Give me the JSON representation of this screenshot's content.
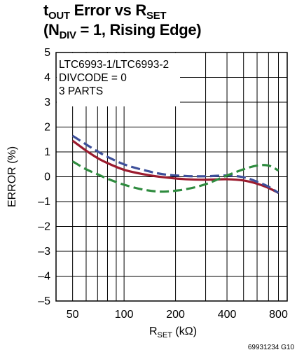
{
  "title": {
    "line1_main": "t",
    "line1_sub": "OUT",
    "line1_mid": " Error vs R",
    "line1_sub2": "SET",
    "line2_pre": "(N",
    "line2_sub": "DIV",
    "line2_post": " = 1, Rising Edge)"
  },
  "figure_id": "69931234 G10",
  "colors": {
    "series_red": "#9b1b2e",
    "series_blue": "#3d4f9a",
    "series_green": "#2e8b3e",
    "grid": "#000000"
  },
  "chart_data": {
    "type": "line",
    "x_scale": "log",
    "xlim": [
      40,
      900
    ],
    "ylim": [
      -5,
      5
    ],
    "xticks": [
      50,
      100,
      200,
      400,
      800
    ],
    "xtick_labels": [
      "50",
      "100",
      "200",
      "400",
      "800"
    ],
    "yticks": [
      5,
      4,
      3,
      2,
      1,
      0,
      -1,
      -2,
      -3,
      -4,
      -5
    ],
    "ytick_labels": [
      "5",
      "4",
      "3",
      "2",
      "1",
      "0",
      "–1",
      "–2",
      "–3",
      "–4",
      "–5"
    ],
    "minor_x_gridlines": [
      60,
      70,
      80,
      90,
      300,
      500,
      600,
      700
    ],
    "xlabel_main": "R",
    "xlabel_sub": "SET",
    "xlabel_unit": " (kΩ)",
    "ylabel": "ERROR (%)",
    "grid": true,
    "annotation": [
      "LTC6993-1/LTC6993-2",
      "DIVCODE = 0",
      "3 PARTS"
    ],
    "series": [
      {
        "style": "solid",
        "color": "#9b1b2e",
        "x": [
          50,
          60,
          70,
          80,
          100,
          130,
          170,
          230,
          300,
          400,
          500,
          600,
          700,
          800
        ],
        "y": [
          1.45,
          1.05,
          0.75,
          0.55,
          0.28,
          0.1,
          -0.02,
          -0.1,
          -0.12,
          -0.1,
          -0.15,
          -0.28,
          -0.45,
          -0.65
        ]
      },
      {
        "style": "dashed",
        "color": "#3d4f9a",
        "x": [
          50,
          60,
          70,
          80,
          100,
          130,
          170,
          230,
          300,
          400,
          500,
          600,
          700,
          800
        ],
        "y": [
          1.65,
          1.3,
          1.02,
          0.8,
          0.5,
          0.27,
          0.1,
          0.03,
          0.02,
          0.05,
          -0.02,
          -0.2,
          -0.4,
          -0.65
        ]
      },
      {
        "style": "dashed",
        "color": "#2e8b3e",
        "x": [
          50,
          60,
          70,
          80,
          100,
          130,
          170,
          230,
          300,
          400,
          500,
          600,
          700,
          800
        ],
        "y": [
          0.62,
          0.3,
          0.1,
          -0.08,
          -0.32,
          -0.52,
          -0.6,
          -0.5,
          -0.3,
          0.05,
          0.3,
          0.45,
          0.45,
          0.25
        ]
      }
    ]
  }
}
